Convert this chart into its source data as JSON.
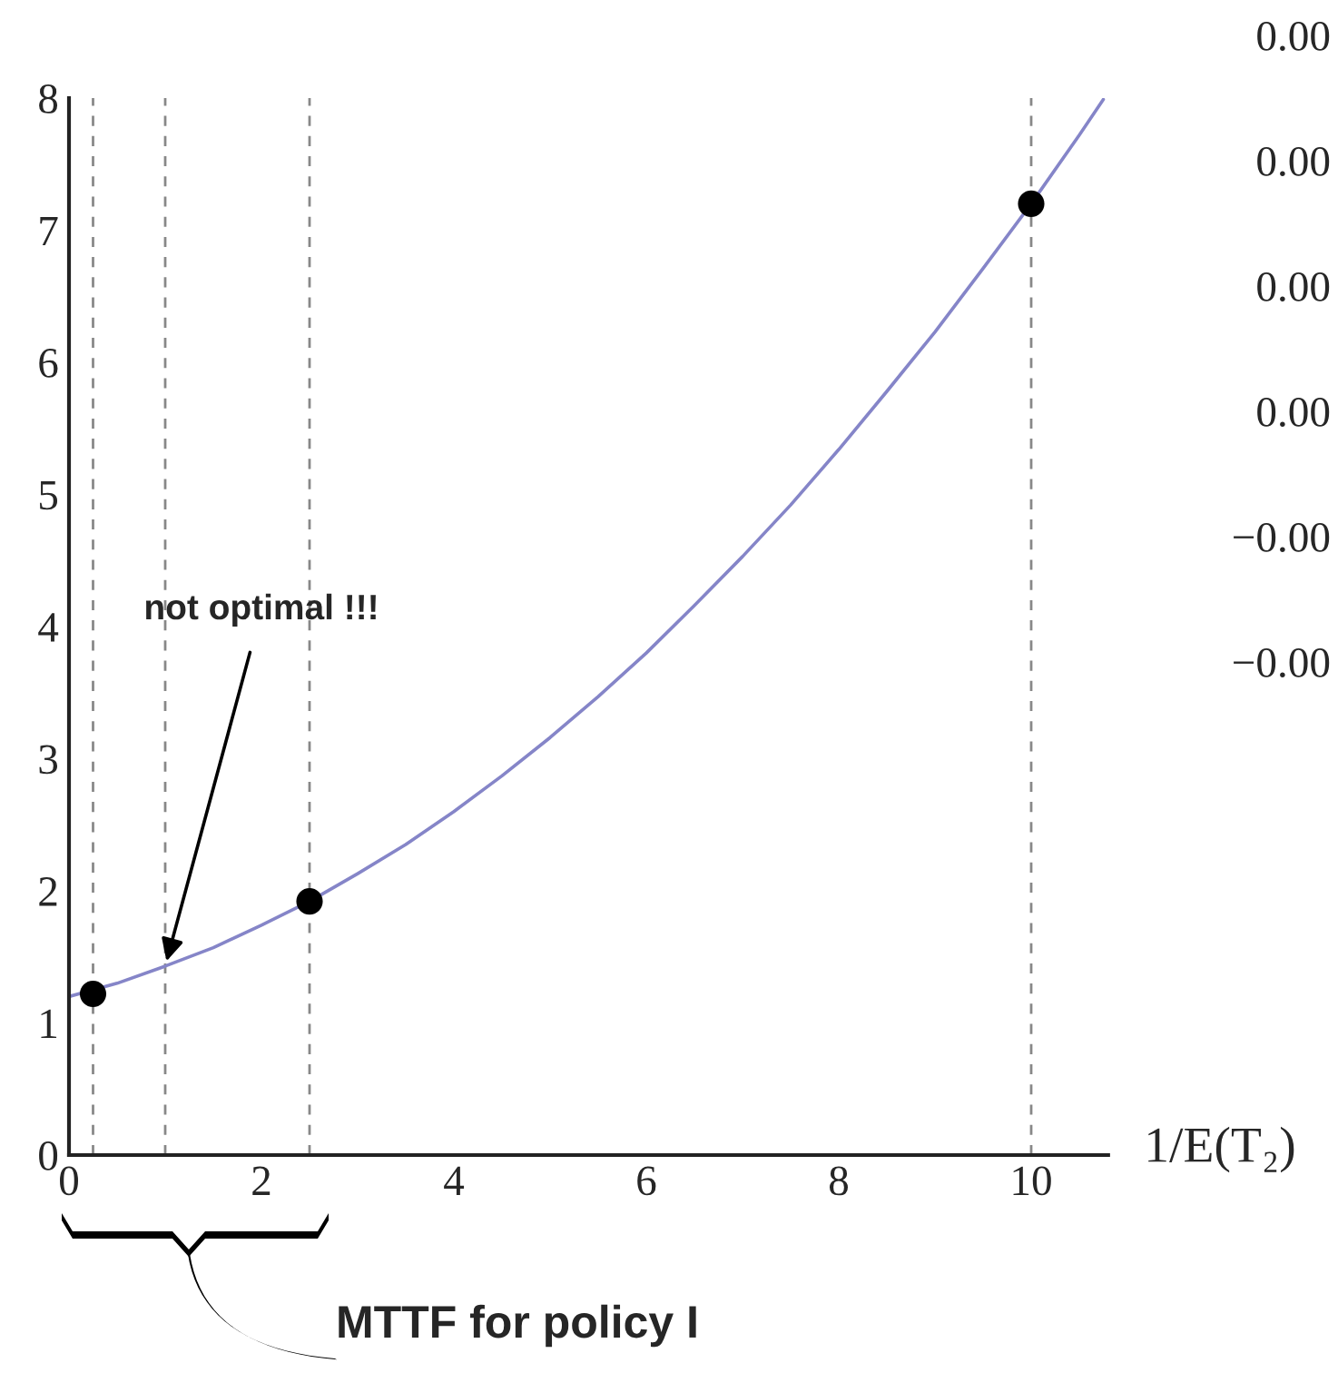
{
  "chart_data": {
    "type": "line",
    "xlabel": "1/E(T₂)",
    "xlim": [
      0,
      10.8
    ],
    "ylim": [
      0,
      8
    ],
    "xticks": [
      0,
      2,
      4,
      6,
      8,
      10
    ],
    "yticks": [
      0,
      1,
      2,
      3,
      4,
      5,
      6,
      7,
      8
    ],
    "series": [
      {
        "color": "#8585c8",
        "x": [
          0,
          0.5,
          1,
          1.5,
          2,
          2.5,
          3,
          3.5,
          4,
          4.5,
          5,
          5.5,
          6,
          6.5,
          7,
          7.5,
          8,
          8.5,
          9,
          9.5,
          10,
          10.5,
          10.75
        ],
        "values": [
          1.2,
          1.3,
          1.43,
          1.57,
          1.74,
          1.92,
          2.13,
          2.35,
          2.6,
          2.87,
          3.16,
          3.47,
          3.8,
          4.16,
          4.53,
          4.92,
          5.34,
          5.78,
          6.23,
          6.71,
          7.2,
          7.72,
          7.99
        ]
      },
      {
        "type": "scatter",
        "marker": "circle",
        "color": "#000000",
        "x": [
          0.25,
          2.5,
          10
        ],
        "values": [
          1.22,
          1.92,
          7.2
        ]
      }
    ],
    "ref_lines": [
      {
        "axis": "x",
        "value": 0.25,
        "color": "#888888",
        "line_style": "dashed"
      },
      {
        "axis": "x",
        "value": 1,
        "color": "#888888",
        "line_style": "dashed"
      },
      {
        "axis": "x",
        "value": 2.5,
        "color": "#888888",
        "line_style": "dashed"
      },
      {
        "axis": "x",
        "value": 10,
        "color": "#888888",
        "line_style": "dashed"
      }
    ],
    "annotations": [
      {
        "text": "not optimal !!!",
        "x": 1,
        "y": 1.43
      },
      "MTTF for policy I",
      "0.00",
      "0.00",
      "0.00",
      "0.00",
      "−0.00",
      "−0.00"
    ],
    "grid": false
  }
}
